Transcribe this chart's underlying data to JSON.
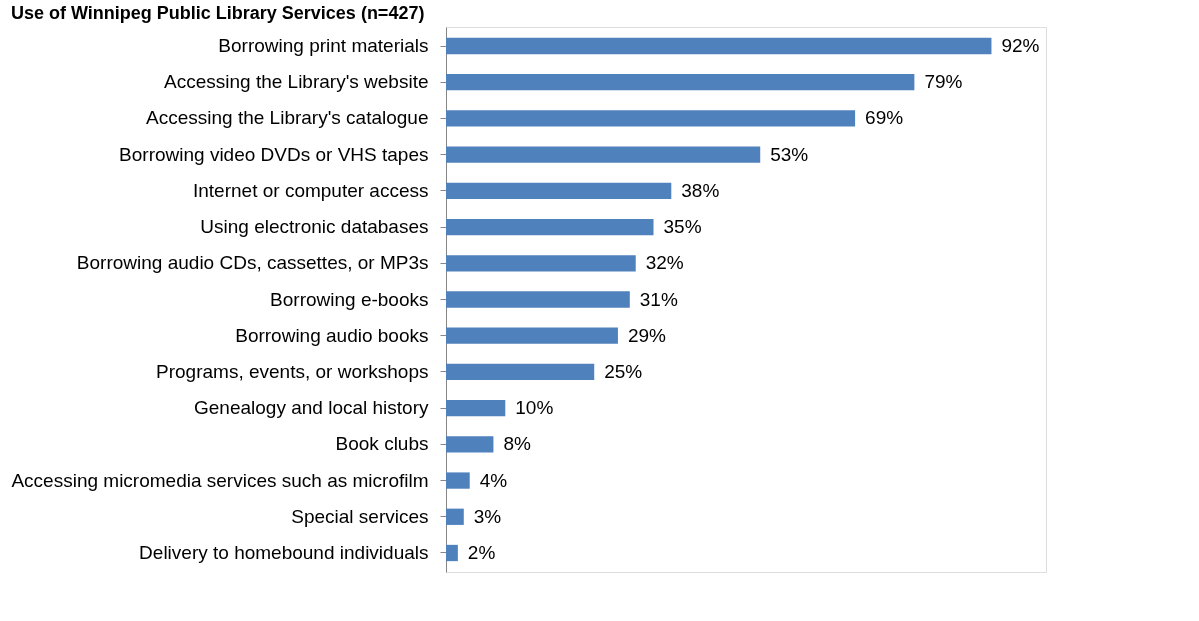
{
  "chart_data": {
    "type": "bar",
    "orientation": "horizontal",
    "title": "Use of Winnipeg Public Library Services (n=427)",
    "categories": [
      "Borrowing print materials",
      "Accessing the Library's website",
      "Accessing the Library's catalogue",
      "Borrowing video DVDs or VHS tapes",
      "Internet or computer access",
      "Using electronic databases",
      "Borrowing audio CDs, cassettes, or MP3s",
      "Borrowing e-books",
      "Borrowing audio books",
      "Programs, events, or workshops",
      "Genealogy and local history",
      "Book clubs",
      "Accessing micromedia services such as microfilm",
      "Special services",
      "Delivery to homebound individuals"
    ],
    "values": [
      92,
      79,
      69,
      53,
      38,
      35,
      32,
      31,
      29,
      25,
      10,
      8,
      4,
      3,
      2
    ],
    "color": "#4f81bd",
    "value_labels": [
      "92%",
      "79%",
      "69%",
      "53%",
      "38%",
      "35%",
      "32%",
      "31%",
      "29%",
      "25%",
      "10%",
      "8%",
      "4%",
      "3%",
      "2%"
    ]
  }
}
